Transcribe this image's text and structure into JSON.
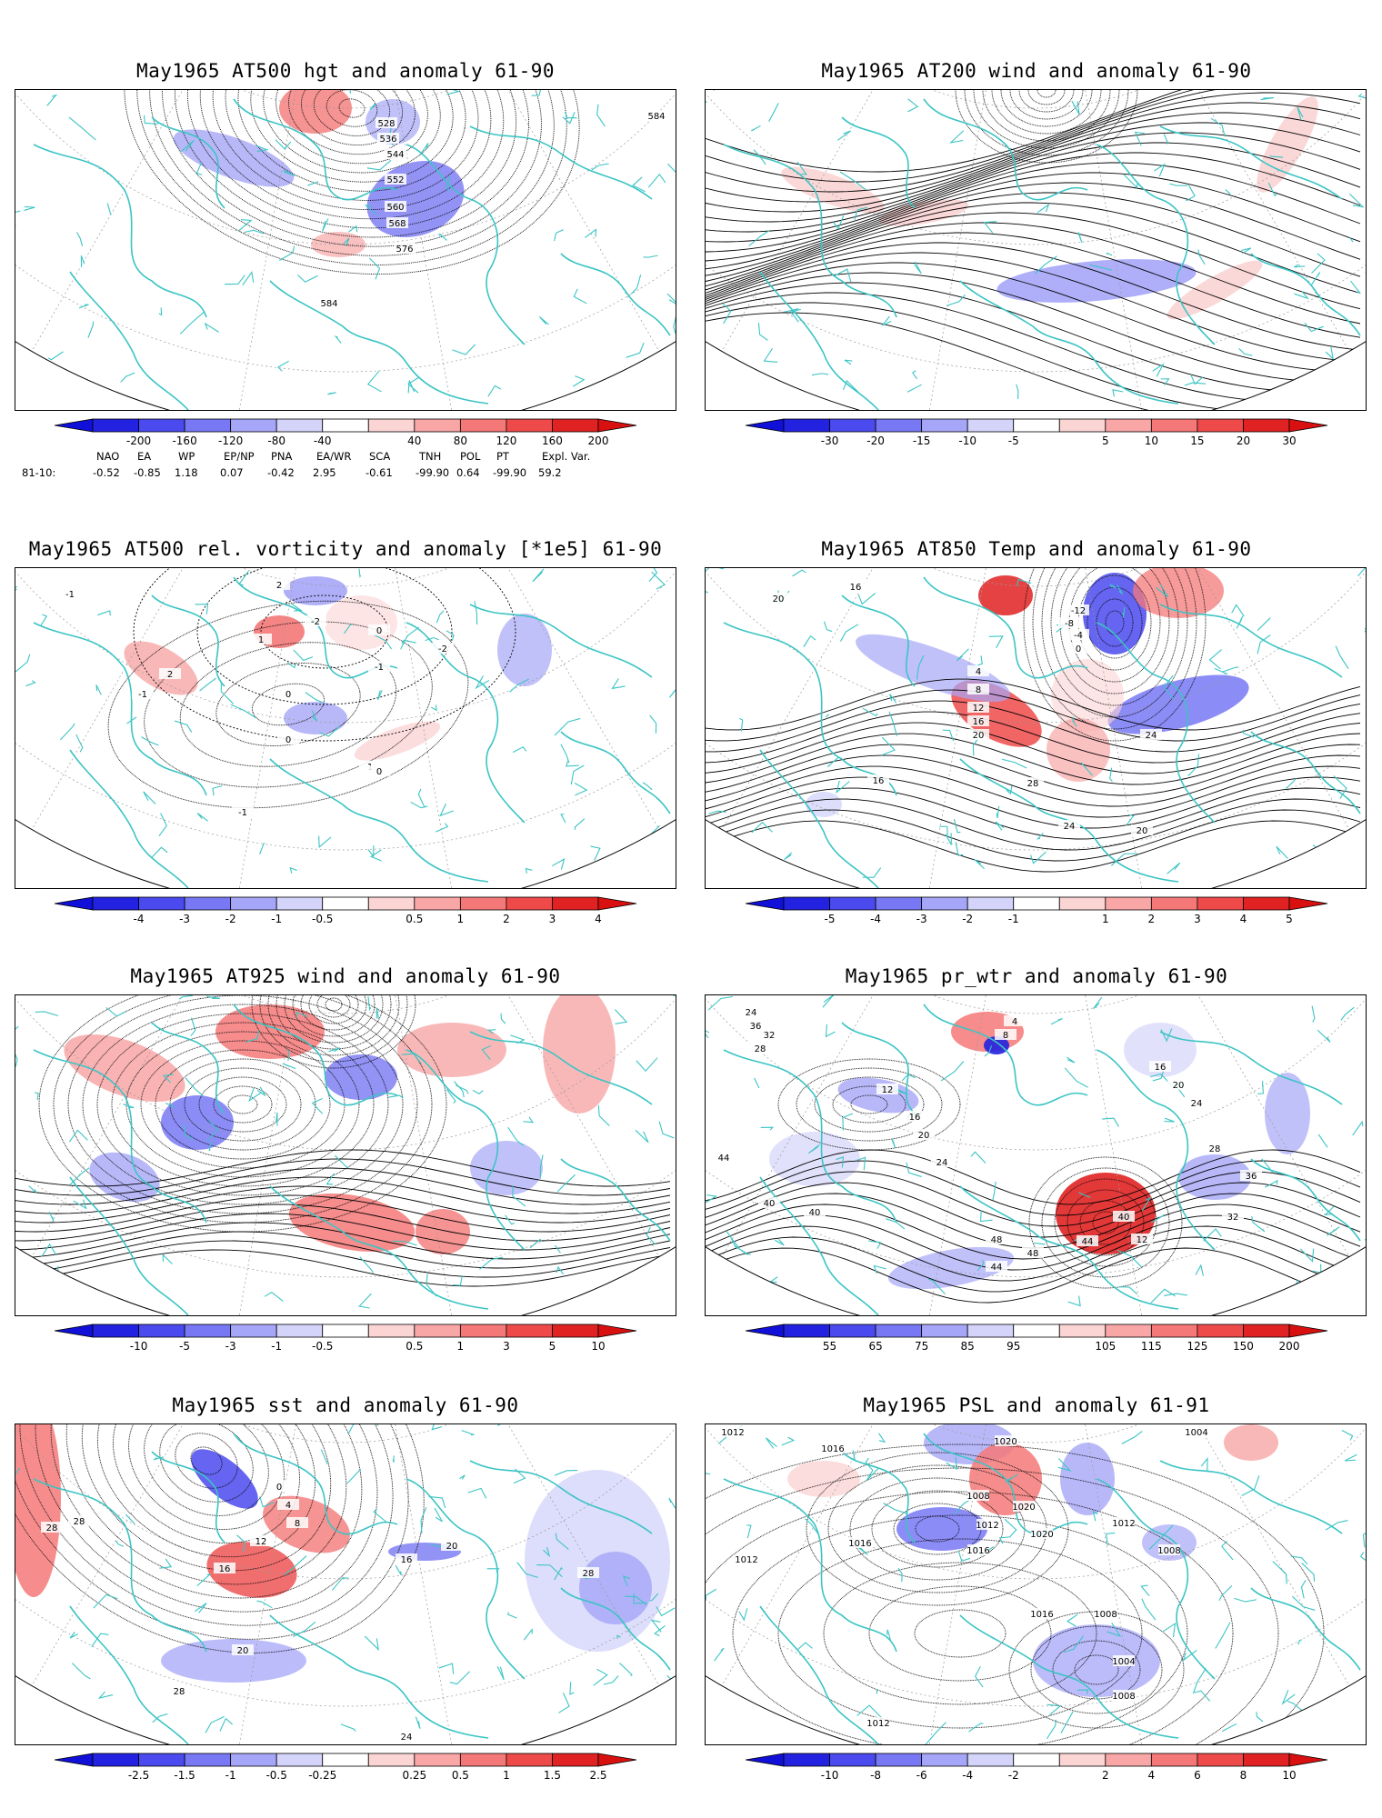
{
  "panels": [
    {
      "id": "p1",
      "title": "May1965 AT500 hgt and anomaly 61-90",
      "contour_labels": [
        "528",
        "536",
        "544",
        "552",
        "560",
        "568",
        "576",
        "584",
        "584"
      ],
      "colorbar": {
        "ticks": [
          "-200",
          "-160",
          "-120",
          "-80",
          "-40",
          "40",
          "80",
          "120",
          "160",
          "200"
        ]
      }
    },
    {
      "id": "p2",
      "title": "May1965 AT200 wind and anomaly 61-90",
      "contour_labels": [],
      "colorbar": {
        "ticks": [
          "-30",
          "-20",
          "-15",
          "-10",
          "-5",
          "5",
          "10",
          "15",
          "20",
          "30"
        ]
      }
    },
    {
      "id": "p3",
      "title": "May1965 AT500 rel. vorticity and anomaly [*1e5] 61-90",
      "contour_labels": [
        "-1",
        "2",
        "-2",
        "1",
        "0",
        "-1",
        "2",
        "-1",
        "0",
        "0",
        "1",
        "-1",
        "0",
        "-2"
      ],
      "colorbar": {
        "ticks": [
          "-4",
          "-3",
          "-2",
          "-1",
          "-0.5",
          "0.5",
          "1",
          "2",
          "3",
          "4"
        ]
      }
    },
    {
      "id": "p4",
      "title": "May1965 AT850 Temp and anomaly 61-90",
      "contour_labels": [
        "16",
        "20",
        "-12",
        "-8",
        "-4",
        "0",
        "4",
        "8",
        "12",
        "16",
        "20",
        "24",
        "28",
        "16",
        "24",
        "20"
      ],
      "colorbar": {
        "ticks": [
          "-5",
          "-4",
          "-3",
          "-2",
          "-1",
          "1",
          "2",
          "3",
          "4",
          "5"
        ]
      }
    },
    {
      "id": "p5",
      "title": "May1965 AT925 wind and anomaly 61-90",
      "contour_labels": [],
      "colorbar": {
        "ticks": [
          "-10",
          "-5",
          "-3",
          "-1",
          "-0.5",
          "0.5",
          "1",
          "3",
          "5",
          "10"
        ]
      }
    },
    {
      "id": "p6",
      "title": "May1965 pr_wtr and anomaly 61-90",
      "contour_labels": [
        "24",
        "36",
        "32",
        "28",
        "8",
        "4",
        "12",
        "16",
        "20",
        "24",
        "44",
        "40",
        "48",
        "44",
        "40",
        "36",
        "32",
        "28",
        "24",
        "20",
        "16",
        "12",
        "48",
        "44",
        "40"
      ],
      "colorbar": {
        "ticks": [
          "55",
          "65",
          "75",
          "85",
          "95",
          "105",
          "115",
          "125",
          "150",
          "200"
        ]
      }
    },
    {
      "id": "p7",
      "title": "May1965 sst and anomaly 61-90",
      "contour_labels": [
        "28",
        "28",
        "0",
        "4",
        "8",
        "12",
        "16",
        "20",
        "24",
        "28",
        "28",
        "20",
        "16"
      ],
      "colorbar": {
        "ticks": [
          "-2.5",
          "-1.5",
          "-1",
          "-0.5",
          "-0.25",
          "0.25",
          "0.5",
          "1",
          "1.5",
          "2.5"
        ]
      }
    },
    {
      "id": "p8",
      "title": "May1965 PSL and anomaly 61-91",
      "contour_labels": [
        "1012",
        "1016",
        "1020",
        "1020",
        "1008",
        "1004",
        "1012",
        "1016",
        "1020",
        "1016",
        "1012",
        "1008",
        "1012",
        "1016",
        "1008",
        "1004",
        "1008",
        "1012"
      ],
      "colorbar": {
        "ticks": [
          "-10",
          "-8",
          "-6",
          "-4",
          "-2",
          "2",
          "4",
          "6",
          "8",
          "10"
        ]
      }
    }
  ],
  "index_table": {
    "headers": [
      "NAO",
      "EA",
      "WP",
      "EP/NP",
      "PNA",
      "EA/WR",
      "SCA",
      "TNH",
      "POL",
      "PT",
      "Expl. Var."
    ],
    "row_label": "81-10:",
    "values": [
      "-0.52",
      "-0.85",
      "1.18",
      "0.07",
      "-0.42",
      "2.95",
      "-0.61",
      "-99.90",
      "0.64",
      "-99.90",
      "59.2"
    ]
  },
  "colors": {
    "coast": "#3cc4c4",
    "neg": [
      "#2222e0",
      "#4a4aee",
      "#7878f4",
      "#a6a6f8",
      "#d4d4fb"
    ],
    "pos": [
      "#fbd4d4",
      "#f8a6a6",
      "#f47878",
      "#ee4a4a",
      "#e02222"
    ]
  }
}
